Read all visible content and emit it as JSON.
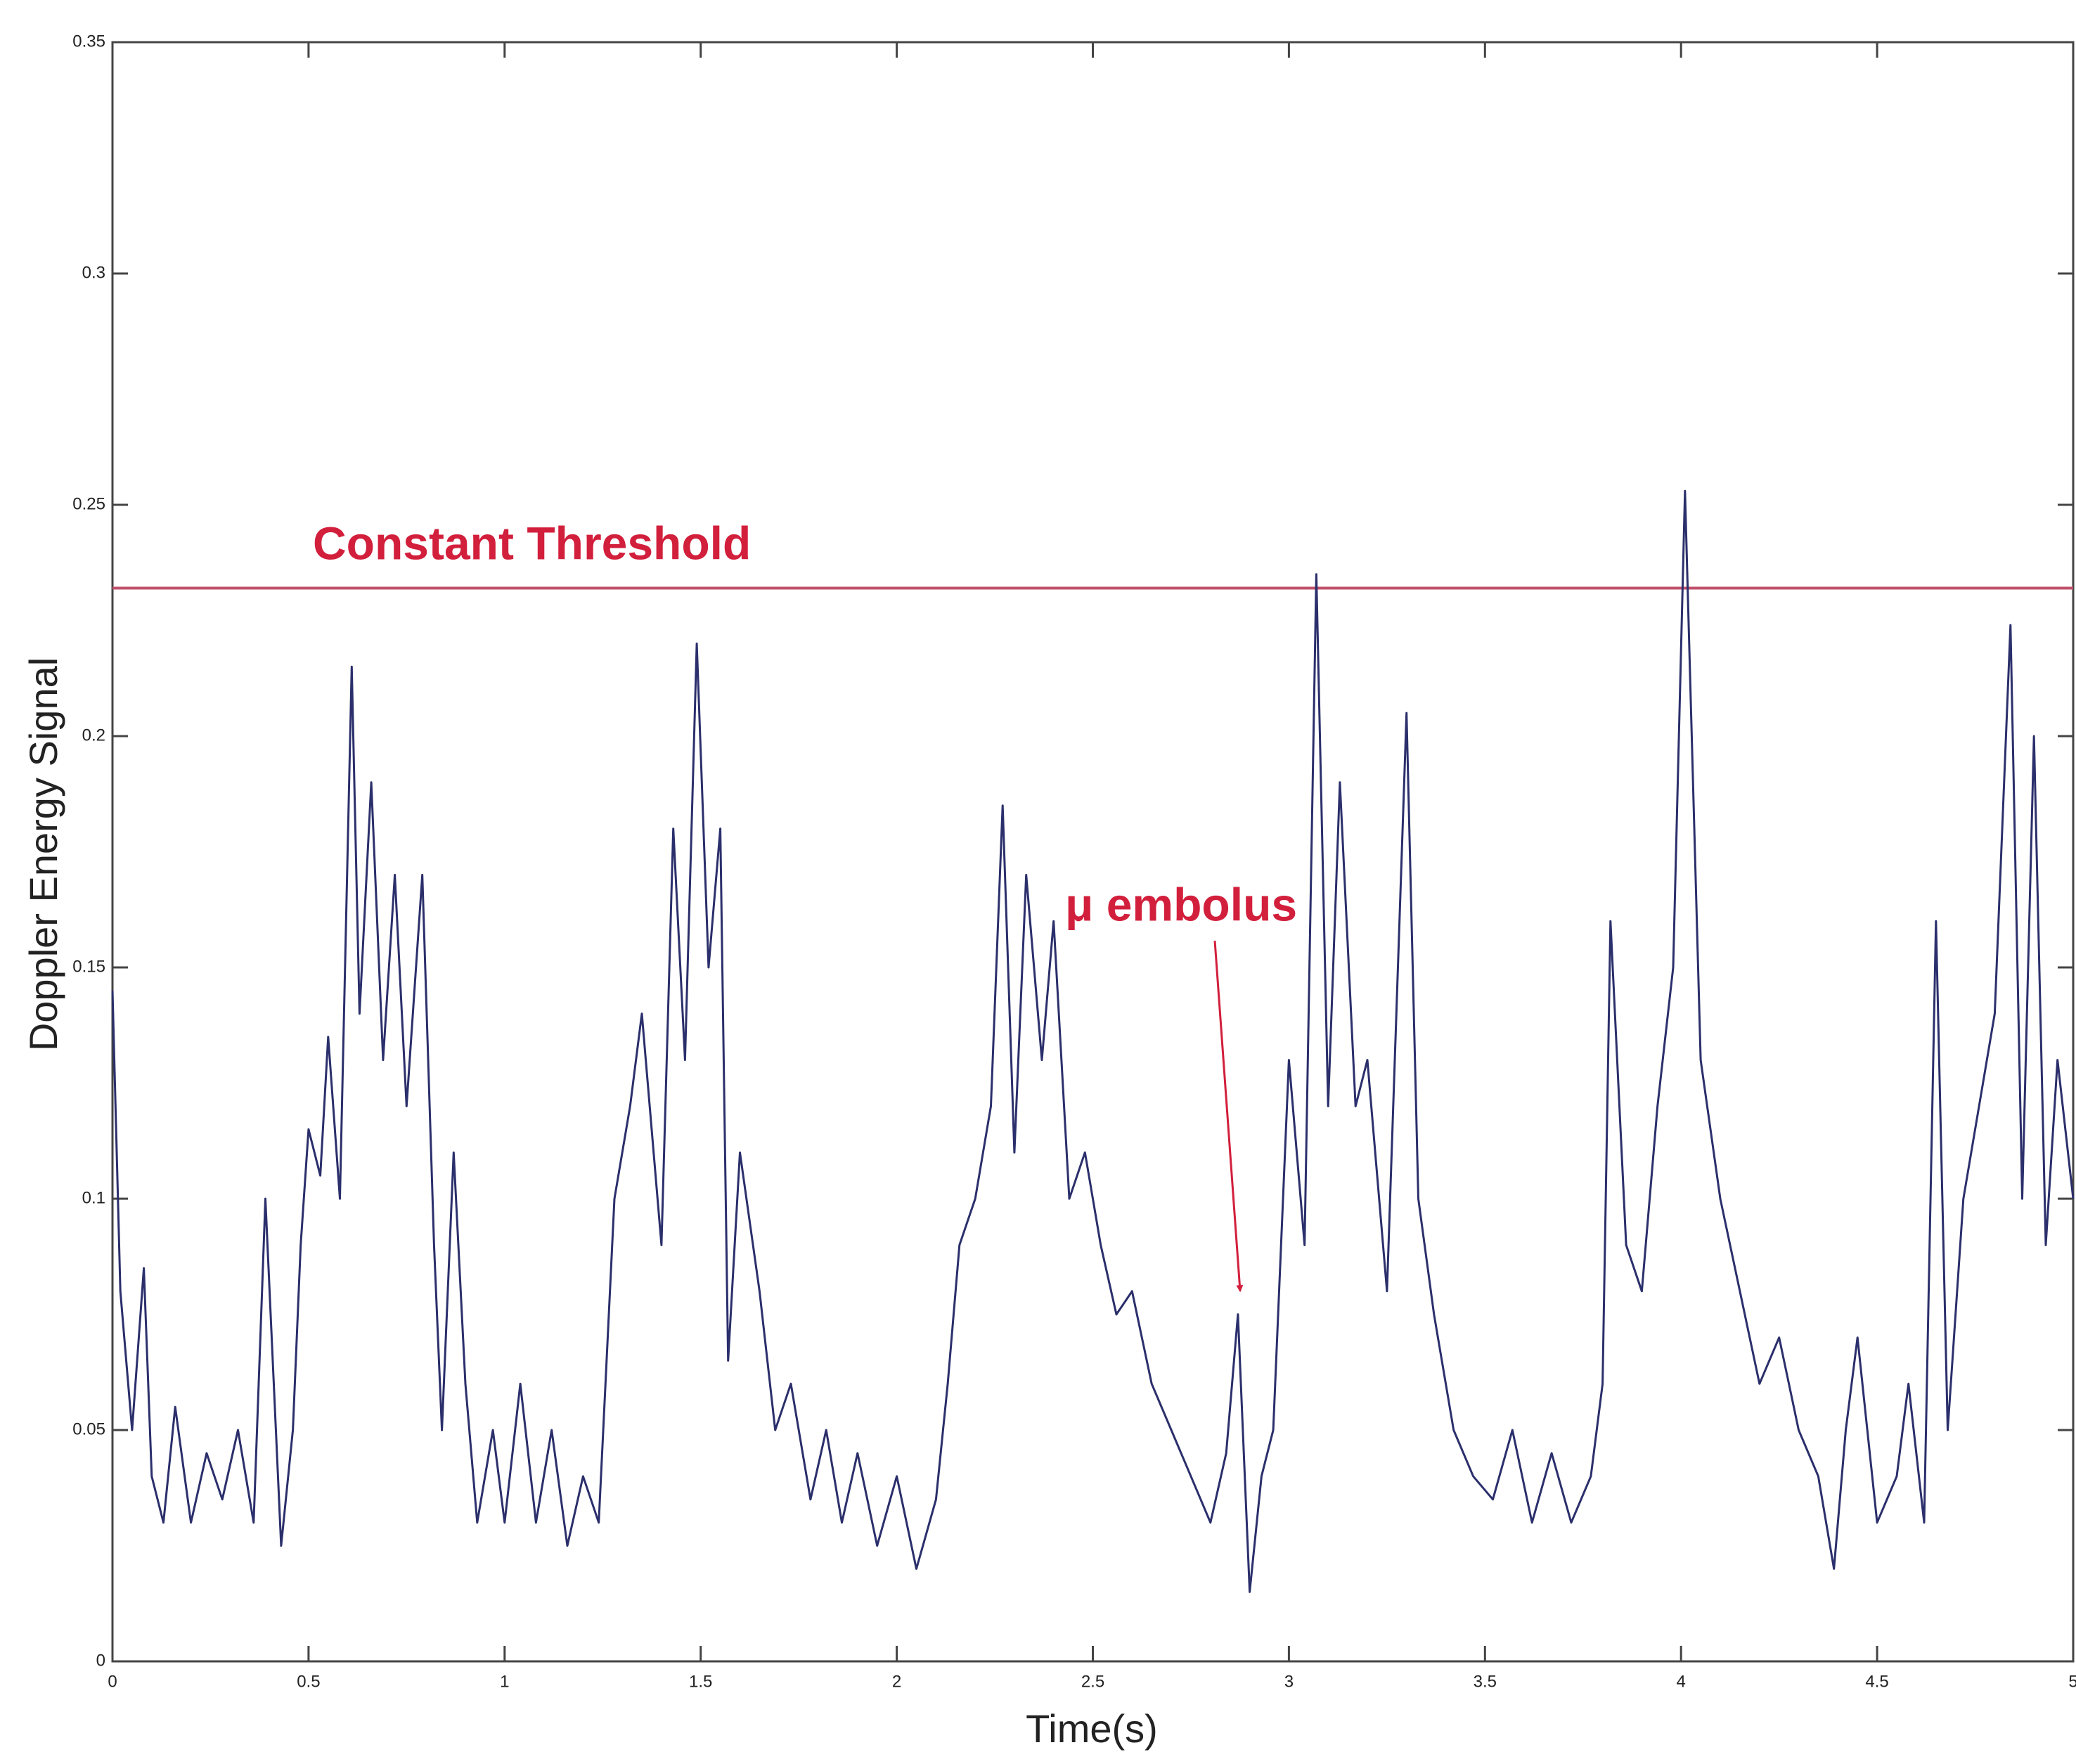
{
  "chart_data": {
    "type": "line",
    "ylabel": "Doppler Energy Signal",
    "xlabel": "Time(s)",
    "annotations": [
      "Constant Threshold",
      "μ embolus"
    ],
    "threshold": 0.232,
    "threshold_color": "#c0506a",
    "xlim": [
      0,
      5
    ],
    "xticks": [
      0,
      0.5,
      1,
      1.5,
      2,
      2.5,
      3,
      3.5,
      4,
      4.5,
      5
    ],
    "ylim": [
      0,
      0.35
    ],
    "yticks": [
      0,
      0.05,
      0.1,
      0.15,
      0.2,
      0.25,
      0.3,
      0.35
    ],
    "x": [
      0,
      0.02,
      0.05,
      0.08,
      0.1,
      0.13,
      0.16,
      0.2,
      0.24,
      0.28,
      0.32,
      0.36,
      0.39,
      0.43,
      0.46,
      0.48,
      0.5,
      0.53,
      0.55,
      0.58,
      0.61,
      0.63,
      0.66,
      0.69,
      0.72,
      0.75,
      0.79,
      0.82,
      0.84,
      0.87,
      0.9,
      0.93,
      0.97,
      1.0,
      1.04,
      1.08,
      1.12,
      1.16,
      1.2,
      1.24,
      1.28,
      1.32,
      1.35,
      1.4,
      1.43,
      1.46,
      1.49,
      1.52,
      1.55,
      1.57,
      1.6,
      1.65,
      1.69,
      1.73,
      1.78,
      1.82,
      1.86,
      1.9,
      1.95,
      2.0,
      2.05,
      2.1,
      2.13,
      2.16,
      2.2,
      2.24,
      2.27,
      2.3,
      2.33,
      2.37,
      2.4,
      2.44,
      2.48,
      2.52,
      2.56,
      2.6,
      2.65,
      2.7,
      2.75,
      2.8,
      2.84,
      2.87,
      2.9,
      2.93,
      2.96,
      3.0,
      3.04,
      3.07,
      3.1,
      3.13,
      3.17,
      3.2,
      3.25,
      3.3,
      3.33,
      3.37,
      3.42,
      3.47,
      3.52,
      3.57,
      3.62,
      3.67,
      3.72,
      3.77,
      3.8,
      3.82,
      3.86,
      3.9,
      3.94,
      3.98,
      4.01,
      4.05,
      4.1,
      4.15,
      4.2,
      4.25,
      4.3,
      4.35,
      4.39,
      4.42,
      4.45,
      4.5,
      4.55,
      4.58,
      4.62,
      4.65,
      4.68,
      4.72,
      4.76,
      4.8,
      4.84,
      4.87,
      4.9,
      4.93,
      4.96,
      5.0
    ],
    "series": [
      {
        "color": "#2b2f6b",
        "values": [
          0.145,
          0.08,
          0.05,
          0.085,
          0.04,
          0.03,
          0.055,
          0.03,
          0.045,
          0.035,
          0.05,
          0.03,
          0.1,
          0.025,
          0.05,
          0.09,
          0.115,
          0.105,
          0.135,
          0.1,
          0.215,
          0.14,
          0.19,
          0.13,
          0.17,
          0.12,
          0.17,
          0.09,
          0.05,
          0.11,
          0.06,
          0.03,
          0.05,
          0.03,
          0.06,
          0.03,
          0.05,
          0.025,
          0.04,
          0.03,
          0.1,
          0.12,
          0.14,
          0.09,
          0.18,
          0.13,
          0.22,
          0.15,
          0.18,
          0.065,
          0.11,
          0.08,
          0.05,
          0.06,
          0.035,
          0.05,
          0.03,
          0.045,
          0.025,
          0.04,
          0.02,
          0.035,
          0.06,
          0.09,
          0.1,
          0.12,
          0.185,
          0.11,
          0.17,
          0.13,
          0.16,
          0.1,
          0.11,
          0.09,
          0.075,
          0.08,
          0.06,
          0.05,
          0.04,
          0.03,
          0.045,
          0.075,
          0.015,
          0.04,
          0.05,
          0.13,
          0.09,
          0.235,
          0.12,
          0.19,
          0.12,
          0.13,
          0.08,
          0.205,
          0.1,
          0.075,
          0.05,
          0.04,
          0.035,
          0.05,
          0.03,
          0.045,
          0.03,
          0.04,
          0.06,
          0.16,
          0.09,
          0.08,
          0.12,
          0.15,
          0.253,
          0.13,
          0.1,
          0.08,
          0.06,
          0.07,
          0.05,
          0.04,
          0.02,
          0.05,
          0.07,
          0.03,
          0.04,
          0.06,
          0.03,
          0.16,
          0.05,
          0.1,
          0.12,
          0.14,
          0.224,
          0.1,
          0.2,
          0.09,
          0.13,
          0.1
        ]
      }
    ]
  }
}
